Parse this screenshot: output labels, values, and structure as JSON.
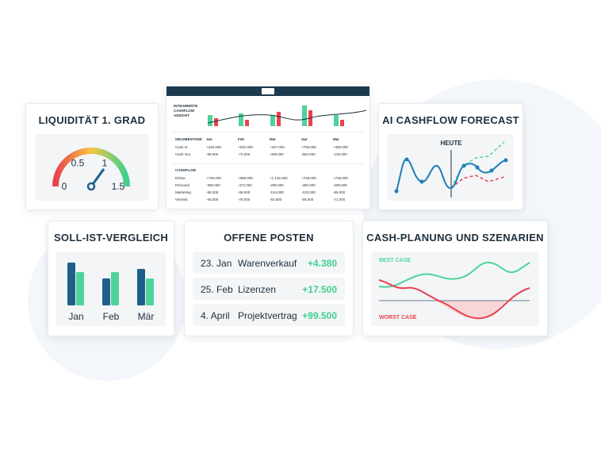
{
  "chart_data": [
    {
      "type": "gauge",
      "title": "LIQUIDITÄT 1. GRAD",
      "value": 1.05,
      "ylim": [
        0,
        1.5
      ],
      "yticks": [
        0,
        0.5,
        1,
        1.5
      ],
      "color": "#1d5f8a"
    },
    {
      "type": "bar",
      "title": "SOLL-IST-VERGLEICH",
      "categories": [
        "Jan",
        "Feb",
        "Mär"
      ],
      "series": [
        {
          "color": "#1d5f8a",
          "values": [
            54,
            34,
            46
          ]
        },
        {
          "color": "#4fd39b",
          "values": [
            42,
            42,
            34
          ]
        }
      ],
      "ylim": [
        0,
        60
      ]
    }
  ],
  "dashboard": {
    "header": "INTEGRIERTE CASHFLOW ANSICHT",
    "balance": {
      "title": "GELDBESTAND",
      "columns": [
        "Jan",
        "Feb",
        "Mar",
        "Apr",
        "Mai"
      ],
      "rows": [
        {
          "label": "Cash In",
          "cells": [
            "+245.000",
            "+632.000",
            "+347.000",
            "+755.000",
            "+480.000"
          ]
        },
        {
          "label": "Cash Out",
          "cells": [
            "-88.000",
            "-74.000",
            "-409.000",
            "-584.000",
            "-135.000"
          ]
        }
      ]
    },
    "cashflow": {
      "title": "CASHFLOW",
      "rows": [
        {
          "label": "Erlöse",
          "cells": [
            "+728.000",
            "+958.000",
            "+1.145.000",
            "+728.000",
            "+728.000"
          ]
        },
        {
          "label": "Personal",
          "cells": [
            "-380.000",
            "-372.000",
            "-290.000",
            "-380.000",
            "-299.000"
          ]
        },
        {
          "label": "Marketing",
          "cells": [
            "-98.000",
            "-85.000",
            "-104.000",
            "-103.000",
            "-85.000"
          ]
        },
        {
          "label": "Vertrieb",
          "cells": [
            "-45.000",
            "-78.000",
            "-62.000",
            "-58.000",
            "-71.000"
          ]
        }
      ]
    }
  },
  "ai_card": {
    "title": "AI CASHFLOW FORECAST",
    "marker": "HEUTE"
  },
  "open_items": {
    "title": "OFFENE POSTEN",
    "rows": [
      [
        "23. Jan",
        "Warenverkauf",
        "+4.380"
      ],
      [
        "25. Feb",
        "Lizenzen",
        "+17.500"
      ],
      [
        "4. April",
        "Projektvertrag",
        "+99.500"
      ]
    ]
  },
  "scenarios": {
    "title": "CASH-PLANUNG UND SZENARIEN",
    "best": "BEST CASE",
    "worst": "WORST CASE"
  }
}
